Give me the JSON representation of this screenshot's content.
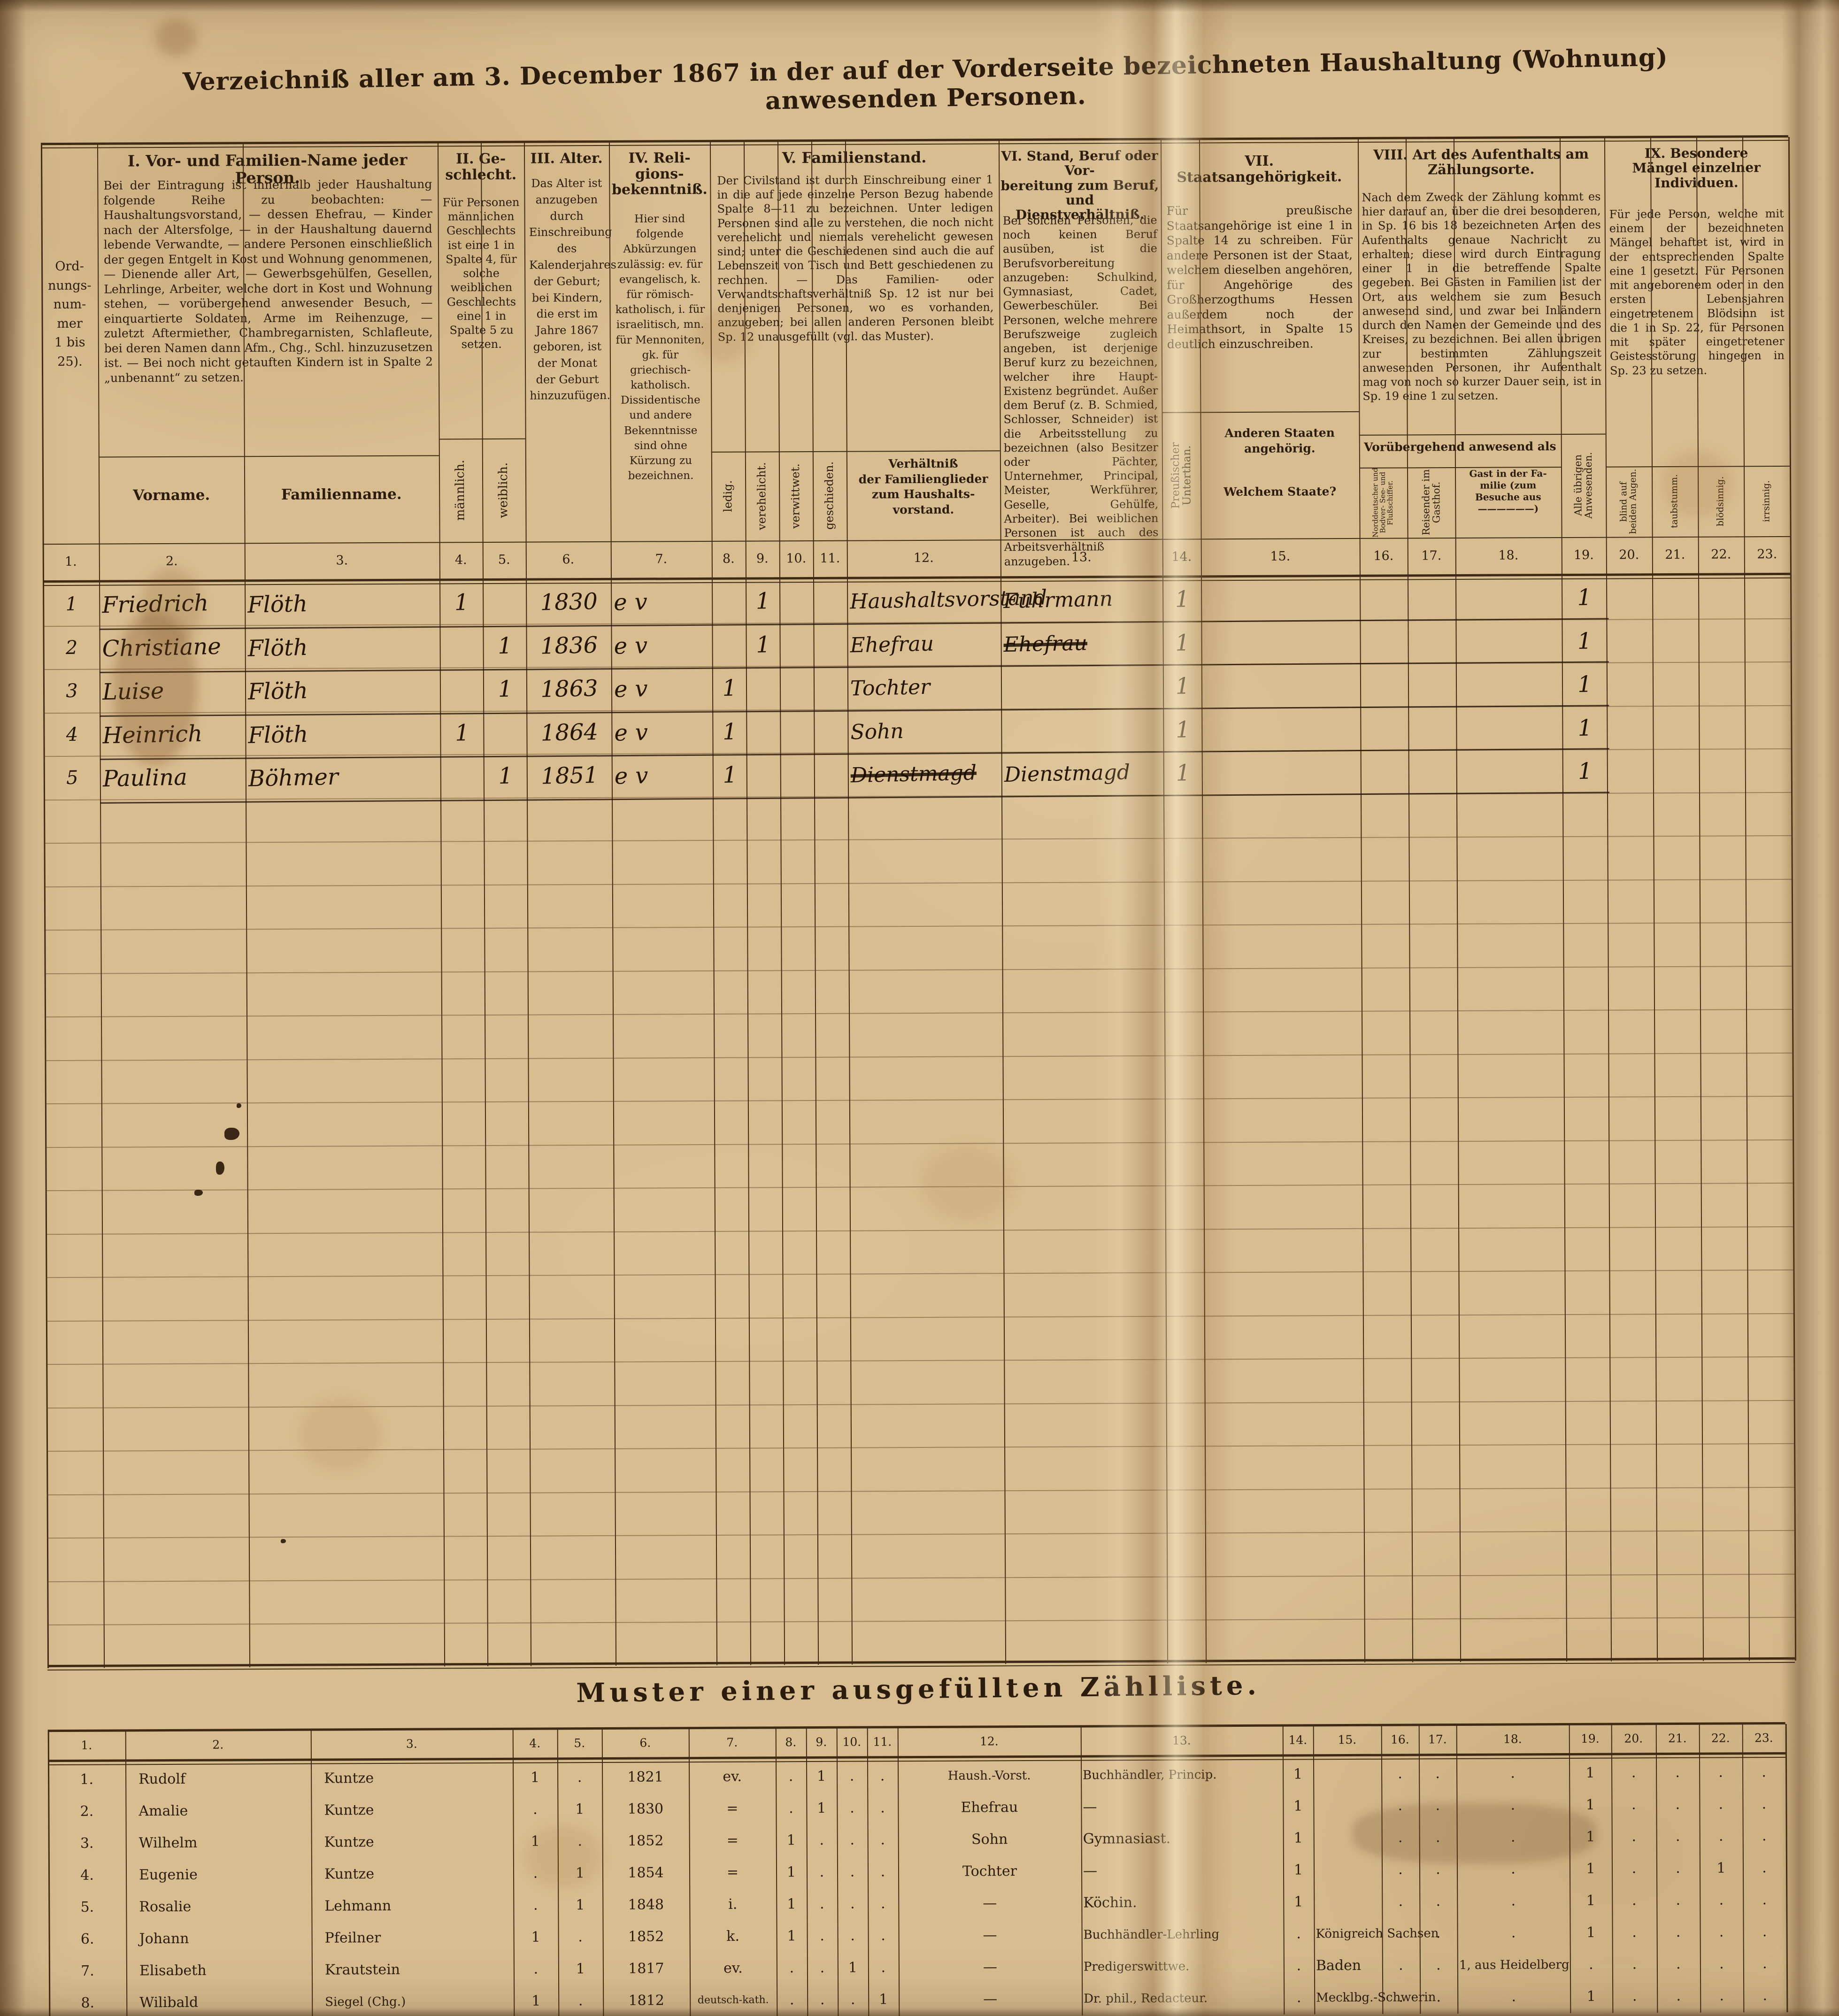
{
  "title": "Verzeichniß aller am 3. December 1867 in der auf der Vorderseite bezeichneten Haushaltung (Wohnung) anwesenden Personen.",
  "col_numbers": [
    "1.",
    "2.",
    "3.",
    "4.",
    "5.",
    "6.",
    "7.",
    "8.",
    "9.",
    "10.",
    "11.",
    "12.",
    "13.",
    "14.",
    "15.",
    "16.",
    "17.",
    "18.",
    "19.",
    "20.",
    "21.",
    "22.",
    "23."
  ],
  "header": {
    "ordnungsnummer": "Ord-\nnungs-\nnum-\nmer\n1 bis\n25).",
    "group1": {
      "title": "I. Vor- und Familien-Name jeder Person.",
      "text": "Bei der Eintragung ist innerhalb jeder Haushaltung folgende Reihe zu beobachten: — Haushaltungsvorstand, — dessen Ehefrau, — Kinder nach der Altersfolge, — in der Haushaltung dauernd lebende Verwandte, — andere Personen einschließlich der gegen Entgelt in Kost und Wohnung genommenen, — Dienende aller Art, — Gewerbsgehülfen, Gesellen, Lehrlinge, Arbeiter, welche dort in Kost und Wohnung stehen, — vorübergehend anwesender Besuch, — einquartierte Soldaten, Arme im Reihenzuge, — zuletzt Aftermiether, Chambregarnisten, Schlafleute, bei deren Namen dann Afm., Chg., Schl. hinzuzusetzen ist. — Bei noch nicht getauften Kindern ist in Spalte 2 „unbenannt“ zu setzen.",
      "vorname": "Vorname.",
      "familienname": "Familienname."
    },
    "group2": {
      "title": "II. Ge-\nschlecht.",
      "text": "Für Personen männlichen Geschlechts ist eine 1 in Spalte 4, für solche weiblichen Geschlechts eine 1 in Spalte 5 zu setzen.",
      "maennlich": "männlich.",
      "weiblich": "weiblich."
    },
    "group3": {
      "title": "III. Alter.",
      "text": "Das Alter ist anzugeben durch Einschreibung des Kalenderjahres der Geburt; bei Kindern, die erst im Jahre 1867 geboren, ist der Monat der Geburt hinzuzufügen."
    },
    "group4": {
      "title": "IV. Reli-\ngions-\nbekenntniß.",
      "text": "Hier sind folgende Abkürzungen zulässig: ev. für evangelisch, k. für römisch-katholisch, i. für israelitisch, mn. für Mennoniten, gk. für griechisch-katholisch. Dissidentische und andere Bekenntnisse sind ohne Kürzung zu bezeichnen."
    },
    "group5": {
      "title": "V. Familienstand.",
      "text": "Der Civilstand ist durch Einschreibung einer 1 in die auf jede einzelne Person Bezug habende Spalte 8—11 zu bezeichnen. Unter ledigen Personen sind alle zu verstehen, die noch nicht verehelicht und niemals verehelicht gewesen sind; unter die Geschiedenen sind auch die auf Lebenszeit von Tisch und Bett geschiedenen zu rechnen. — Das Familien- oder Verwandtschaftsverhältniß Sp. 12 ist nur bei denjenigen Personen, wo es vorhanden, anzugeben; bei allen anderen Personen bleibt Sp. 12 unausgefüllt (vgl. das Muster).",
      "ledig": "ledig.",
      "verehelicht": "verehelicht.",
      "verwittwet": "verwittwet.",
      "geschieden": "geschieden.",
      "verhaeltnis": "Verhältniß\nder Familienglieder\nzum Haushalts-\nvorstand."
    },
    "group6": {
      "title": "VI. Stand, Beruf oder Vor-\nbereitung zum Beruf,\nund Dienstverhältniß.",
      "text": "Bei solchen Personen, die noch keinen Beruf ausüben, ist die Berufsvorbereitung anzugeben: Schulkind, Gymnasiast, Cadet, Gewerbeschüler. Bei Personen, welche mehrere Berufszweige zugleich angeben, ist derjenige Beruf kurz zu bezeichnen, welcher ihre Haupt-Existenz begründet. Außer dem Beruf (z. B. Schmied, Schlosser, Schneider) ist die Arbeitsstellung zu bezeichnen (also Besitzer oder Pächter, Unternehmer, Principal, Meister, Werkführer, Geselle, Gehülfe, Arbeiter). Bei weiblichen Personen ist auch des Arbeitsverhältniß anzugeben."
    },
    "group7": {
      "title": "VII.\nStaatsangehörigkeit.",
      "text": "Für preußische Staatsangehörige ist eine 1 in Spalte 14 zu schreiben. Für andere Personen ist der Staat, welchem dieselben angehören, für Angehörige des Großherzogthums Hessen außerdem noch der Heimathsort, in Spalte 15 deutlich einzuschreiben.",
      "unterthan": "Preußischer Unterthan.",
      "andere": "Anderen Staaten angehörig.",
      "welchem": "Welchem Staate?"
    },
    "group8": {
      "title": "VIII. Art des Aufenthalts am\nZählungsorte.",
      "text": "Nach dem Zweck der Zählung kommt es hier darauf an, über die drei besonderen, in Sp. 16 bis 18 bezeichneten Arten des Aufenthalts genaue Nachricht zu erhalten; diese wird durch Eintragung einer 1 in die betreffende Spalte gegeben. Bei Gästen in Familien ist der Ort, aus welchem sie zum Besuch anwesend sind, und zwar bei Inländern durch den Namen der Gemeinde und des Kreises, zu bezeichnen. Bei allen übrigen zur bestimmten Zählungszeit anwesenden Personen, ihr Aufenthalt mag von noch so kurzer Dauer sein, ist in Sp. 19 eine 1 zu setzen.",
      "voruebergehend": "Vorübergehend anwesend als",
      "schiffer": "Norddeutscher und Bodver- See- und Flußschiffer.",
      "reisender": "Reisender im Gasthof.",
      "gast": "Gast in der Fa-\nmilie (zum\nBesuche aus\n——————)",
      "uebrige": "Alle übrigen Anwesenden."
    },
    "group9": {
      "title": "IX. Besondere\nMängel einzelner\nIndividuen.",
      "text": "Für jede Person, welche mit einem der bezeichneten Mängel behaftet ist, wird in der entsprechenden Spalte eine 1 gesetzt. Für Personen mit angeborenem oder in den ersten Lebensjahren eingetretenem Blödsinn ist die 1 in Sp. 22, für Personen mit später eingetretener Geistesstörung hingegen in Sp. 23 zu setzen.",
      "blind": "blind auf beiden Augen.",
      "taubstumm": "taubstumm.",
      "bloedsinnig": "blödsinnig.",
      "irrsinnig": "irrsinnig."
    }
  },
  "main": {
    "rows": [
      {
        "nr": "1",
        "vorname": "Friedrich",
        "familienname": "Flöth",
        "m": "1",
        "w": "",
        "geburtsjahr": "1830",
        "religion": "ev",
        "ledig": "",
        "verehelicht": "1",
        "verwittwet": "",
        "geschieden": "",
        "verhaeltnis": "Haushaltsvorstand",
        "verhaeltnis_gestrichen": "",
        "beruf": "Fuhrmann",
        "beruf_gestrichen": "",
        "preussischer_unterthan": "1",
        "alle_uebrigen": "1"
      },
      {
        "nr": "2",
        "vorname": "Christiane",
        "familienname": "Flöth",
        "m": "",
        "w": "1",
        "geburtsjahr": "1836",
        "religion": "ev",
        "ledig": "",
        "verehelicht": "1",
        "verwittwet": "",
        "geschieden": "",
        "verhaeltnis": "Ehefrau",
        "verhaeltnis_gestrichen": "",
        "beruf": "",
        "beruf_gestrichen": "Ehefrau",
        "preussischer_unterthan": "1",
        "alle_uebrigen": "1"
      },
      {
        "nr": "3",
        "vorname": "Luise",
        "familienname": "Flöth",
        "m": "",
        "w": "1",
        "geburtsjahr": "1863",
        "religion": "ev",
        "ledig": "1",
        "verehelicht": "",
        "verwittwet": "",
        "geschieden": "",
        "verhaeltnis": "Tochter",
        "verhaeltnis_gestrichen": "",
        "beruf": "",
        "beruf_gestrichen": "",
        "preussischer_unterthan": "1",
        "alle_uebrigen": "1"
      },
      {
        "nr": "4",
        "vorname": "Heinrich",
        "familienname": "Flöth",
        "m": "1",
        "w": "",
        "geburtsjahr": "1864",
        "religion": "ev",
        "ledig": "1",
        "verehelicht": "",
        "verwittwet": "",
        "geschieden": "",
        "verhaeltnis": "Sohn",
        "verhaeltnis_gestrichen": "",
        "beruf": "",
        "beruf_gestrichen": "",
        "preussischer_unterthan": "1",
        "alle_uebrigen": "1"
      },
      {
        "nr": "5",
        "vorname": "Paulina",
        "familienname": "Böhmer",
        "m": "",
        "w": "1",
        "geburtsjahr": "1851",
        "religion": "ev",
        "ledig": "1",
        "verehelicht": "",
        "verwittwet": "",
        "geschieden": "",
        "verhaeltnis": "",
        "verhaeltnis_gestrichen": "Dienstmagd",
        "beruf": "Dienstmagd",
        "beruf_gestrichen": "",
        "preussischer_unterthan": "1",
        "alle_uebrigen": "1"
      }
    ]
  },
  "muster": {
    "title": "Muster einer ausgefüllten Zählliste.",
    "rows": [
      {
        "nr": "1.",
        "vorname": "Rudolf",
        "name": "Kuntze",
        "m": "1",
        "w": ".",
        "geb": "1821",
        "rel": "ev.",
        "c8": ".",
        "c9": "1",
        "c10": ".",
        "c11": ".",
        "verh": "Haush.-Vorst.",
        "beruf": "Buchhändler, Princip.",
        "c14": "1",
        "staat": "",
        "c16": ".",
        "c17": ".",
        "c18": ".",
        "c19": "1",
        "c20": ".",
        "c21": ".",
        "c22": ".",
        "c23": "."
      },
      {
        "nr": "2.",
        "vorname": "Amalie",
        "name": "Kuntze",
        "m": ".",
        "w": "1",
        "geb": "1830",
        "rel": "=",
        "c8": ".",
        "c9": "1",
        "c10": ".",
        "c11": ".",
        "verh": "Ehefrau",
        "beruf": "—",
        "c14": "1",
        "staat": "",
        "c16": ".",
        "c17": ".",
        "c18": ".",
        "c19": "1",
        "c20": ".",
        "c21": ".",
        "c22": ".",
        "c23": "."
      },
      {
        "nr": "3.",
        "vorname": "Wilhelm",
        "name": "Kuntze",
        "m": "1",
        "w": ".",
        "geb": "1852",
        "rel": "=",
        "c8": "1",
        "c9": ".",
        "c10": ".",
        "c11": ".",
        "verh": "Sohn",
        "beruf": "Gymnasiast.",
        "c14": "1",
        "staat": "",
        "c16": ".",
        "c17": ".",
        "c18": ".",
        "c19": "1",
        "c20": ".",
        "c21": ".",
        "c22": ".",
        "c23": "."
      },
      {
        "nr": "4.",
        "vorname": "Eugenie",
        "name": "Kuntze",
        "m": ".",
        "w": "1",
        "geb": "1854",
        "rel": "=",
        "c8": "1",
        "c9": ".",
        "c10": ".",
        "c11": ".",
        "verh": "Tochter",
        "beruf": "—",
        "c14": "1",
        "staat": "",
        "c16": ".",
        "c17": ".",
        "c18": ".",
        "c19": "1",
        "c20": ".",
        "c21": ".",
        "c22": "1",
        "c23": "."
      },
      {
        "nr": "5.",
        "vorname": "Rosalie",
        "name": "Lehmann",
        "m": ".",
        "w": "1",
        "geb": "1848",
        "rel": "i.",
        "c8": "1",
        "c9": ".",
        "c10": ".",
        "c11": ".",
        "verh": "—",
        "beruf": "Köchin.",
        "c14": "1",
        "staat": "",
        "c16": ".",
        "c17": ".",
        "c18": ".",
        "c19": "1",
        "c20": ".",
        "c21": ".",
        "c22": ".",
        "c23": "."
      },
      {
        "nr": "6.",
        "vorname": "Johann",
        "name": "Pfeilner",
        "m": "1",
        "w": ".",
        "geb": "1852",
        "rel": "k.",
        "c8": "1",
        "c9": ".",
        "c10": ".",
        "c11": ".",
        "verh": "—",
        "beruf": "Buchhändler-Lehrling",
        "c14": ".",
        "staat": "Königreich Sachsen",
        "c16": ".",
        "c17": ".",
        "c18": ".",
        "c19": "1",
        "c20": ".",
        "c21": ".",
        "c22": ".",
        "c23": "."
      },
      {
        "nr": "7.",
        "vorname": "Elisabeth",
        "name": "Krautstein",
        "m": ".",
        "w": "1",
        "geb": "1817",
        "rel": "ev.",
        "c8": ".",
        "c9": ".",
        "c10": "1",
        "c11": ".",
        "verh": "—",
        "beruf": "Predigerswittwe.",
        "c14": ".",
        "staat": "Baden",
        "c16": ".",
        "c17": ".",
        "c18": "1, aus Heidelberg",
        "c19": ".",
        "c20": ".",
        "c21": ".",
        "c22": ".",
        "c23": "."
      },
      {
        "nr": "8.",
        "vorname": "Wilibald",
        "name": "Siegel (Chg.)",
        "m": "1",
        "w": ".",
        "geb": "1812",
        "rel": "deutsch-kath.",
        "c8": ".",
        "c9": ".",
        "c10": ".",
        "c11": "1",
        "verh": "—",
        "beruf": "Dr. phil., Redacteur.",
        "c14": ".",
        "staat": "Mecklbg.-Schwerin",
        "c16": ".",
        "c17": ".",
        "c18": ".",
        "c19": "1",
        "c20": ".",
        "c21": ".",
        "c22": ".",
        "c23": "."
      }
    ]
  }
}
